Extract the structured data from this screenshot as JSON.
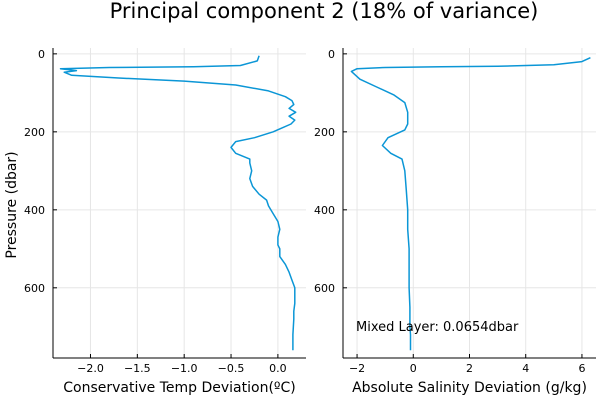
{
  "figure": {
    "title": "Principal component 2 (18% of variance)",
    "annotation": "Mixed Layer: 0.0654dbar",
    "series_color": "#0b96d6"
  },
  "chart_data": [
    {
      "type": "line",
      "xlabel": "Conservative Temp Deviation(ºC)",
      "ylabel": "Pressure (dbar)",
      "xlim": [
        -2.4,
        0.3
      ],
      "ylim": [
        780,
        -15
      ],
      "y_inverted": true,
      "grid": true,
      "xticks": [
        -2.0,
        -1.5,
        -1.0,
        -0.5,
        0.0
      ],
      "xtick_labels": [
        "−2.0",
        "−1.5",
        "−1.0",
        "−0.5",
        "0.0"
      ],
      "yticks": [
        0,
        200,
        400,
        600
      ],
      "ytick_labels": [
        "0",
        "200",
        "400",
        "600"
      ],
      "series": [
        {
          "x": [
            -0.2,
            -0.22,
            -0.4,
            -0.9,
            -1.8,
            -2.32,
            -2.15,
            -2.28,
            -2.2,
            -1.7,
            -1.0,
            -0.45,
            -0.1,
            0.08,
            0.15,
            0.17,
            0.12,
            0.19,
            0.12,
            0.18,
            0.14,
            -0.05,
            -0.25,
            -0.45,
            -0.5,
            -0.45,
            -0.3,
            -0.3,
            -0.28,
            -0.3,
            -0.27,
            -0.2,
            -0.12,
            -0.1,
            -0.05,
            0.0,
            0.02,
            0.0,
            0.0,
            0.02,
            0.02,
            0.08,
            0.12,
            0.15,
            0.18,
            0.18,
            0.17,
            0.17,
            0.16,
            0.16
          ],
          "y": [
            5,
            18,
            30,
            33,
            35,
            38,
            43,
            47,
            55,
            62,
            70,
            80,
            95,
            110,
            120,
            130,
            140,
            150,
            160,
            170,
            180,
            200,
            215,
            225,
            240,
            255,
            270,
            280,
            300,
            320,
            340,
            360,
            375,
            390,
            410,
            430,
            450,
            470,
            490,
            500,
            520,
            540,
            560,
            580,
            600,
            640,
            660,
            680,
            720,
            760
          ]
        }
      ]
    },
    {
      "type": "line",
      "xlabel": "Absolute Salinity Deviation (g/kg)",
      "ylabel": "",
      "xlim": [
        -2.5,
        6.5
      ],
      "ylim": [
        780,
        -15
      ],
      "y_inverted": true,
      "grid": true,
      "xticks": [
        -2,
        0,
        2,
        4,
        6
      ],
      "xtick_labels": [
        "−2",
        "0",
        "2",
        "4",
        "6"
      ],
      "yticks": [
        0,
        200,
        400,
        600
      ],
      "ytick_labels": [
        "0",
        "200",
        "400",
        "600"
      ],
      "series": [
        {
          "x": [
            6.3,
            6.0,
            5.0,
            3.0,
            1.0,
            -1.0,
            -2.0,
            -2.2,
            -1.9,
            -1.3,
            -0.7,
            -0.3,
            -0.2,
            -0.2,
            -0.3,
            -0.6,
            -0.9,
            -1.1,
            -0.8,
            -0.4,
            -0.3,
            -0.25,
            -0.2,
            -0.2,
            -0.15,
            -0.15,
            -0.15,
            -0.12,
            -0.12,
            -0.1,
            -0.1,
            -0.1
          ],
          "y": [
            10,
            20,
            28,
            32,
            33,
            35,
            38,
            45,
            65,
            85,
            105,
            125,
            150,
            180,
            195,
            205,
            215,
            235,
            255,
            270,
            300,
            350,
            400,
            450,
            500,
            550,
            600,
            650,
            700,
            720,
            740,
            760
          ]
        }
      ]
    }
  ]
}
